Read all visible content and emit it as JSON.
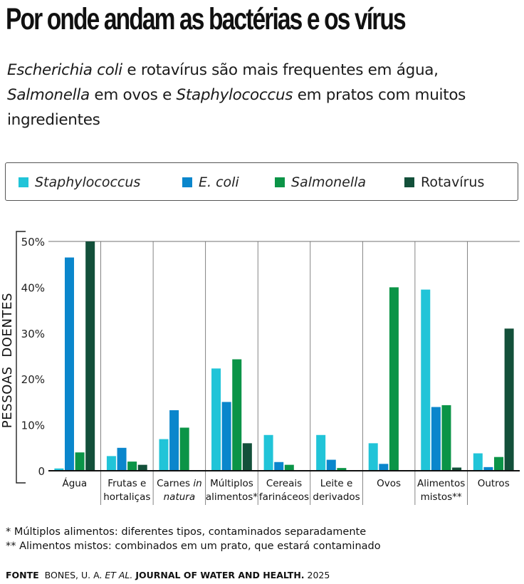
{
  "header": {
    "title": "Por onde andam as bactérias e os vírus",
    "subtitle_parts": [
      {
        "text": "Escherichia coli",
        "italic": true
      },
      {
        "text": " e rotavírus são mais frequentes em água, ",
        "italic": false
      },
      {
        "text": "Salmonella",
        "italic": true
      },
      {
        "text": " em ovos e ",
        "italic": false
      },
      {
        "text": "Staphylococcus",
        "italic": true
      },
      {
        "text": " em pratos com muitos ingredientes",
        "italic": false
      }
    ]
  },
  "legend": [
    {
      "label": "Staphylococcus",
      "italic": true,
      "color": "#21c4d8"
    },
    {
      "label": "E. coli",
      "italic": true,
      "color": "#0a86cc"
    },
    {
      "label": "Salmonella",
      "italic": true,
      "color": "#0b9447"
    },
    {
      "label": "Rotavírus",
      "italic": false,
      "color": "#13503a"
    }
  ],
  "footnotes": [
    "* Múltiplos alimentos: diferentes tipos, contaminados separadamente",
    "** Alimentos mistos: combinados em um prato, que estará contaminado"
  ],
  "source": {
    "label": "FONTE",
    "authors": "BONES, U. A.",
    "etal": "ET AL.",
    "journal": "JOURNAL OF WATER AND HEALTH.",
    "year": "2025"
  },
  "chart_data": {
    "type": "bar",
    "ylabel": "PESSOAS  DOENTES",
    "ylim": [
      0,
      50
    ],
    "yticks": [
      0,
      10,
      20,
      30,
      40,
      50
    ],
    "ytick_labels": [
      "0",
      "10%",
      "20%",
      "30%",
      "40%",
      "50%"
    ],
    "grid": "vertical category separators",
    "categories": [
      [
        {
          "t": "Água",
          "i": false
        }
      ],
      [
        {
          "t": "Frutas e",
          "i": false
        },
        {
          "t": "hortaliças",
          "i": false
        }
      ],
      [
        {
          "t": "Carnes ",
          "i": false,
          "s": "in",
          "si": true
        },
        {
          "t": "natura",
          "i": true
        }
      ],
      [
        {
          "t": "Múltiplos",
          "i": false
        },
        {
          "t": "alimentos*",
          "i": false
        }
      ],
      [
        {
          "t": "Cereais",
          "i": false
        },
        {
          "t": "farináceos",
          "i": false
        }
      ],
      [
        {
          "t": "Leite e",
          "i": false
        },
        {
          "t": "derivados",
          "i": false
        }
      ],
      [
        {
          "t": "Ovos",
          "i": false
        }
      ],
      [
        {
          "t": "Alimentos",
          "i": false
        },
        {
          "t": "mistos**",
          "i": false
        }
      ],
      [
        {
          "t": "Outros",
          "i": false
        }
      ]
    ],
    "series": [
      {
        "name": "Staphylococcus",
        "color": "#21c4d8",
        "values": [
          0.5,
          3.2,
          6.9,
          22.3,
          7.8,
          7.8,
          6.0,
          39.5,
          3.8
        ]
      },
      {
        "name": "E. coli",
        "color": "#0a86cc",
        "values": [
          46.5,
          5.0,
          13.2,
          15.0,
          1.9,
          2.4,
          1.5,
          13.9,
          0.8
        ]
      },
      {
        "name": "Salmonella",
        "color": "#0b9447",
        "values": [
          4.0,
          2.0,
          9.4,
          24.3,
          1.3,
          0.6,
          40.0,
          14.3,
          3.0
        ]
      },
      {
        "name": "Rotavírus",
        "color": "#13503a",
        "values": [
          50.0,
          1.3,
          0.0,
          6.0,
          0.0,
          0.0,
          0.0,
          0.7,
          31.0
        ]
      }
    ]
  }
}
